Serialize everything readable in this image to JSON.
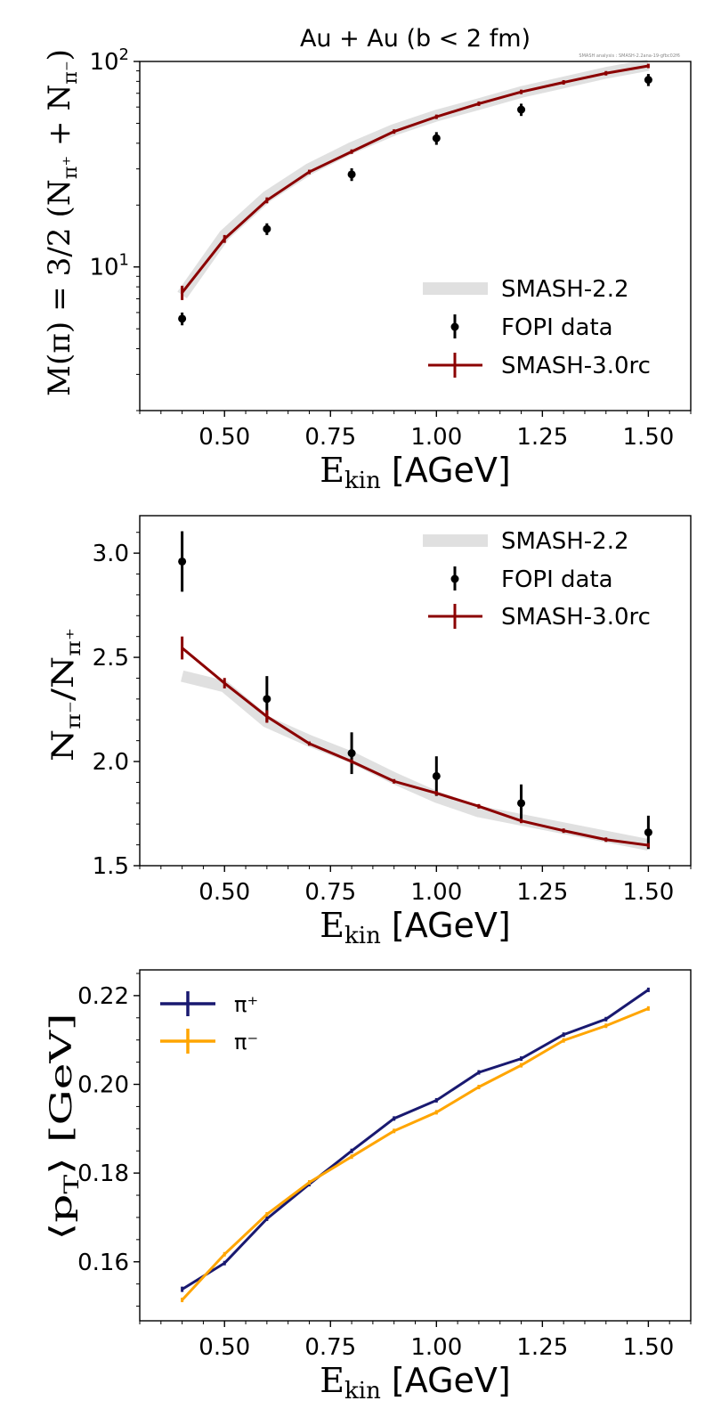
{
  "watermark": "SMASH analysis : SMASH-2.2ana-19-gfbc02f6",
  "colors": {
    "smash22_band": "#e0e0e0",
    "fopi": "#000000",
    "smash30rc": "#8b0000",
    "pi_plus": "#191970",
    "pi_minus": "#ffa500"
  },
  "chart_data": [
    {
      "type": "line",
      "title": "Au + Au (b < 2 fm)",
      "yscale": "log",
      "xlim": [
        0.3,
        1.6
      ],
      "ylim": [
        2,
        100
      ],
      "grid": false,
      "legend": "lower-right",
      "xlabel": {
        "main": "E",
        "sub": "kin",
        "unit": " [AGeV]"
      },
      "ylabel": [
        {
          "t": "M(π) = 3/2 (N"
        },
        {
          "t": "π⁺",
          "sub": true
        },
        {
          "t": " + N"
        },
        {
          "t": "π⁻",
          "sub": true
        },
        {
          "t": ")"
        }
      ],
      "xticks": [
        0.5,
        0.75,
        1.0,
        1.25,
        1.5
      ],
      "xtick_labels": [
        "0.50",
        "0.75",
        "1.00",
        "1.25",
        "1.50"
      ],
      "yticks": [
        10,
        100
      ],
      "ytick_labels": [
        {
          "base": "10",
          "exp": "1"
        },
        {
          "base": "10",
          "exp": "2"
        }
      ],
      "series": [
        {
          "name": "SMASH-2.2",
          "style": "band",
          "x": [
            0.4,
            0.5,
            0.6,
            0.7,
            0.8,
            0.9,
            1.0,
            1.1,
            1.2,
            1.3,
            1.4,
            1.5
          ],
          "y": [
            7.3,
            14.3,
            22.0,
            30.0,
            38.0,
            46.5,
            54.5,
            62.0,
            71.0,
            79.0,
            88.0,
            96.0
          ]
        },
        {
          "name": "FOPI data",
          "style": "points",
          "x": [
            0.4,
            0.6,
            0.8,
            1.0,
            1.2,
            1.5
          ],
          "y": [
            5.6,
            15.3,
            28.2,
            42.3,
            58.3,
            81.4
          ],
          "yerr": [
            0.4,
            1.0,
            2.0,
            3.0,
            4.0,
            5.5
          ]
        },
        {
          "name": "SMASH-3.0rc",
          "style": "line-err",
          "x": [
            0.4,
            0.5,
            0.6,
            0.7,
            0.8,
            0.9,
            1.0,
            1.1,
            1.2,
            1.3,
            1.4,
            1.5
          ],
          "y": [
            7.5,
            13.7,
            21.1,
            29.0,
            36.4,
            45.6,
            53.8,
            62.3,
            71.1,
            79.1,
            87.6,
            95.1
          ],
          "yerr": [
            0.6,
            0.6,
            0.7,
            0.5,
            0.4,
            0.4,
            0.4,
            0.3,
            0.3,
            0.3,
            0.3,
            1.0
          ]
        }
      ]
    },
    {
      "type": "line",
      "xlim": [
        0.3,
        1.6
      ],
      "ylim": [
        1.5,
        3.18
      ],
      "grid": false,
      "legend": "upper-right",
      "xlabel": {
        "main": "E",
        "sub": "kin",
        "unit": " [AGeV]"
      },
      "ylabel": [
        {
          "t": "N"
        },
        {
          "t": "π⁻",
          "sub": true
        },
        {
          "t": "/N"
        },
        {
          "t": "π⁺",
          "sub": true
        }
      ],
      "xticks": [
        0.5,
        0.75,
        1.0,
        1.25,
        1.5
      ],
      "xtick_labels": [
        "0.50",
        "0.75",
        "1.00",
        "1.25",
        "1.50"
      ],
      "yticks": [
        1.5,
        2.0,
        2.5,
        3.0
      ],
      "ytick_labels": [
        "1.5",
        "2.0",
        "2.5",
        "3.0"
      ],
      "series": [
        {
          "name": "SMASH-2.2",
          "style": "band",
          "x": [
            0.4,
            0.5,
            0.6,
            0.7,
            0.8,
            0.9,
            1.0,
            1.1,
            1.2,
            1.3,
            1.4,
            1.5
          ],
          "y": [
            2.41,
            2.36,
            2.19,
            2.1,
            2.02,
            1.92,
            1.83,
            1.76,
            1.72,
            1.68,
            1.64,
            1.6
          ]
        },
        {
          "name": "FOPI data",
          "style": "points",
          "x": [
            0.4,
            0.6,
            0.8,
            1.0,
            1.2,
            1.5
          ],
          "y": [
            2.96,
            2.3,
            2.04,
            1.93,
            1.8,
            1.66
          ],
          "yerr": [
            0.145,
            0.11,
            0.1,
            0.095,
            0.09,
            0.08
          ]
        },
        {
          "name": "SMASH-3.0rc",
          "style": "line-err",
          "x": [
            0.4,
            0.5,
            0.6,
            0.7,
            0.8,
            0.9,
            1.0,
            1.1,
            1.2,
            1.3,
            1.4,
            1.5
          ],
          "y": [
            2.545,
            2.376,
            2.216,
            2.086,
            2.0,
            1.905,
            1.848,
            1.785,
            1.715,
            1.668,
            1.625,
            1.598
          ],
          "yerr": [
            0.055,
            0.025,
            0.03,
            0.01,
            0.01,
            0.008,
            0.008,
            0.006,
            0.006,
            0.005,
            0.005,
            0.005
          ]
        }
      ]
    },
    {
      "type": "line",
      "xlim": [
        0.3,
        1.6
      ],
      "ylim": [
        0.1467,
        0.2258
      ],
      "grid": false,
      "legend": "upper-left",
      "xlabel": {
        "main": "E",
        "sub": "kin",
        "unit": " [AGeV]"
      },
      "ylabel": [
        {
          "t": "⟨p"
        },
        {
          "t": "T",
          "sub": true
        },
        {
          "t": "⟩ [GeV]"
        }
      ],
      "xticks": [
        0.5,
        0.75,
        1.0,
        1.25,
        1.5
      ],
      "xtick_labels": [
        "0.50",
        "0.75",
        "1.00",
        "1.25",
        "1.50"
      ],
      "yticks": [
        0.16,
        0.18,
        0.2,
        0.22
      ],
      "ytick_labels": [
        "0.16",
        "0.18",
        "0.20",
        "0.22"
      ],
      "series": [
        {
          "name": "π⁺",
          "style": "line-err",
          "color_key": "pi_plus",
          "x": [
            0.4,
            0.5,
            0.6,
            0.7,
            0.8,
            0.9,
            1.0,
            1.1,
            1.2,
            1.3,
            1.4,
            1.5
          ],
          "y": [
            0.1538,
            0.1597,
            0.1697,
            0.1775,
            0.185,
            0.1923,
            0.1964,
            0.2027,
            0.2058,
            0.2112,
            0.2147,
            0.2213
          ],
          "yerr": [
            0.0006,
            0.0005,
            0.0004,
            0.0003,
            0.0003,
            0.0003,
            0.0003,
            0.0003,
            0.0003,
            0.0003,
            0.0003,
            0.0003
          ]
        },
        {
          "name": "π⁻",
          "style": "line-err",
          "color_key": "pi_minus",
          "x": [
            0.4,
            0.5,
            0.6,
            0.7,
            0.8,
            0.9,
            1.0,
            1.1,
            1.2,
            1.3,
            1.4,
            1.5
          ],
          "y": [
            0.1514,
            0.1617,
            0.1707,
            0.1779,
            0.1837,
            0.1895,
            0.1937,
            0.1994,
            0.2043,
            0.2099,
            0.2132,
            0.2171
          ],
          "yerr": [
            0.0005,
            0.0004,
            0.0003,
            0.0003,
            0.0003,
            0.0003,
            0.0003,
            0.0003,
            0.0003,
            0.0003,
            0.0003,
            0.0003
          ]
        }
      ]
    }
  ]
}
